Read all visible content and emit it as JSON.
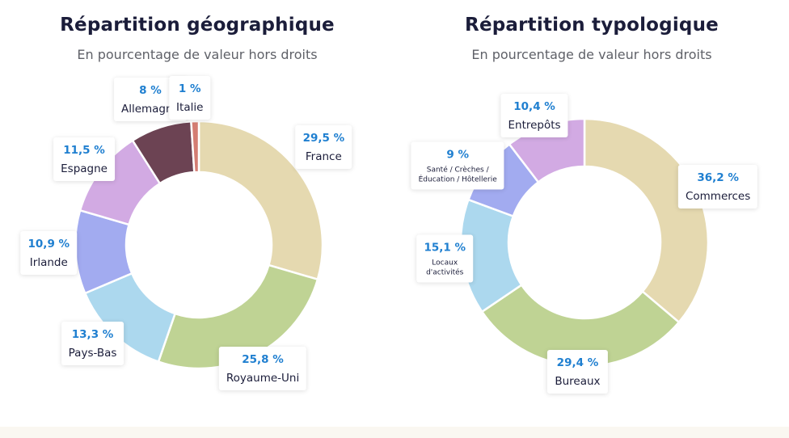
{
  "chart_data": [
    {
      "type": "pie",
      "title": "Répartition géographique",
      "subtitle": "En pourcentage de valeur hors droits",
      "categories": [
        "France",
        "Royaume-Uni",
        "Pays-Bas",
        "Irlande",
        "Espagne",
        "Allemagne",
        "Italie"
      ],
      "values": [
        29.5,
        25.8,
        13.3,
        10.9,
        11.5,
        8,
        1
      ],
      "value_labels": [
        "29,5 %",
        "25,8 %",
        "13,3 %",
        "10,9 %",
        "11,5 %",
        "8 %",
        "1 %"
      ],
      "colors": [
        "#e5d9b0",
        "#bfd394",
        "#acd8ee",
        "#a2abf0",
        "#d2aae3",
        "#6c4353",
        "#d47d73"
      ],
      "start": "12 o'clock, clockwise",
      "donut": true
    },
    {
      "type": "pie",
      "title": "Répartition typologique",
      "subtitle": "En pourcentage de valeur hors droits",
      "categories": [
        "Commerces",
        "Bureaux",
        "Locaux\nd'activités",
        "Santé / Crèches /\nÉducation / Hôtellerie",
        "Entrepôts"
      ],
      "values": [
        36.2,
        29.4,
        15.1,
        9,
        10.4
      ],
      "value_labels": [
        "36,2 %",
        "29,4 %",
        "15,1 %",
        "9 %",
        "10,4 %"
      ],
      "colors": [
        "#e5d9b0",
        "#bfd394",
        "#acd8ee",
        "#a2abf0",
        "#d2aae3"
      ],
      "small_label": [
        false,
        false,
        true,
        true,
        false
      ],
      "start": "12 o'clock, clockwise",
      "donut": true
    }
  ]
}
